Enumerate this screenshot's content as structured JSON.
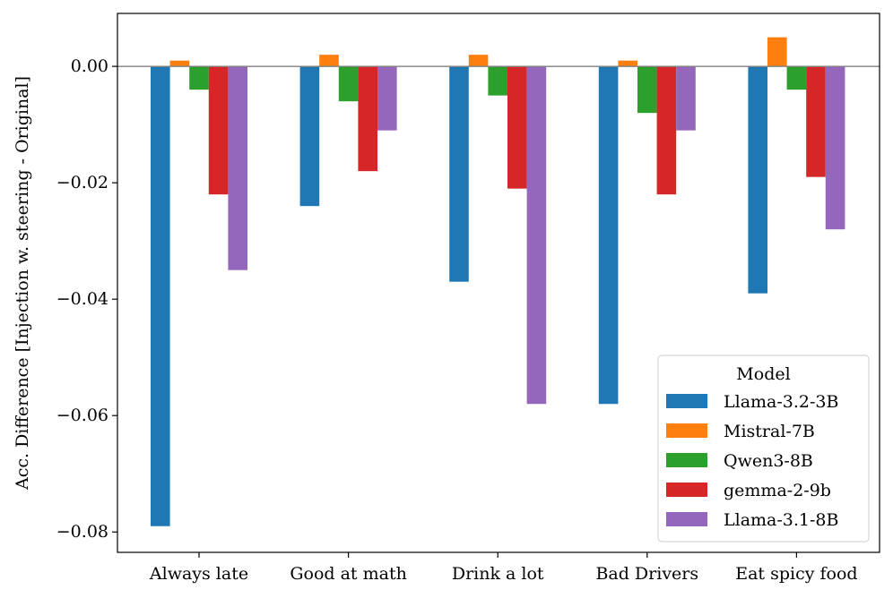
{
  "chart_data": {
    "type": "bar",
    "title": "",
    "xlabel": "",
    "ylabel": "Acc. Difference [Injection w. steering - Original]",
    "ylim": [
      -0.0835,
      0.0091
    ],
    "yticks": [
      0.0,
      -0.02,
      -0.04,
      -0.06,
      -0.08
    ],
    "ytick_labels": [
      "0.00",
      "−0.02",
      "−0.04",
      "−0.06",
      "−0.08"
    ],
    "categories": [
      "Always late",
      "Good at math",
      "Drink a lot",
      "Bad Drivers",
      "Eat spicy food"
    ],
    "series": [
      {
        "name": "Llama-3.2-3B",
        "color": "#1f77b4",
        "values": [
          -0.079,
          -0.024,
          -0.037,
          -0.058,
          -0.039
        ]
      },
      {
        "name": "Mistral-7B",
        "color": "#ff7f0e",
        "values": [
          0.001,
          0.002,
          0.002,
          0.001,
          0.005
        ]
      },
      {
        "name": "Qwen3-8B",
        "color": "#2ca02c",
        "values": [
          -0.004,
          -0.006,
          -0.005,
          -0.008,
          -0.004
        ]
      },
      {
        "name": "gemma-2-9b",
        "color": "#d62728",
        "values": [
          -0.022,
          -0.018,
          -0.021,
          -0.022,
          -0.019
        ]
      },
      {
        "name": "Llama-3.1-8B",
        "color": "#9467bd",
        "values": [
          -0.035,
          -0.011,
          -0.058,
          -0.011,
          -0.028
        ]
      }
    ],
    "zero_line": true,
    "zero_line_color": "#808080",
    "legend": {
      "title": "Model",
      "position": "lower-right"
    }
  }
}
